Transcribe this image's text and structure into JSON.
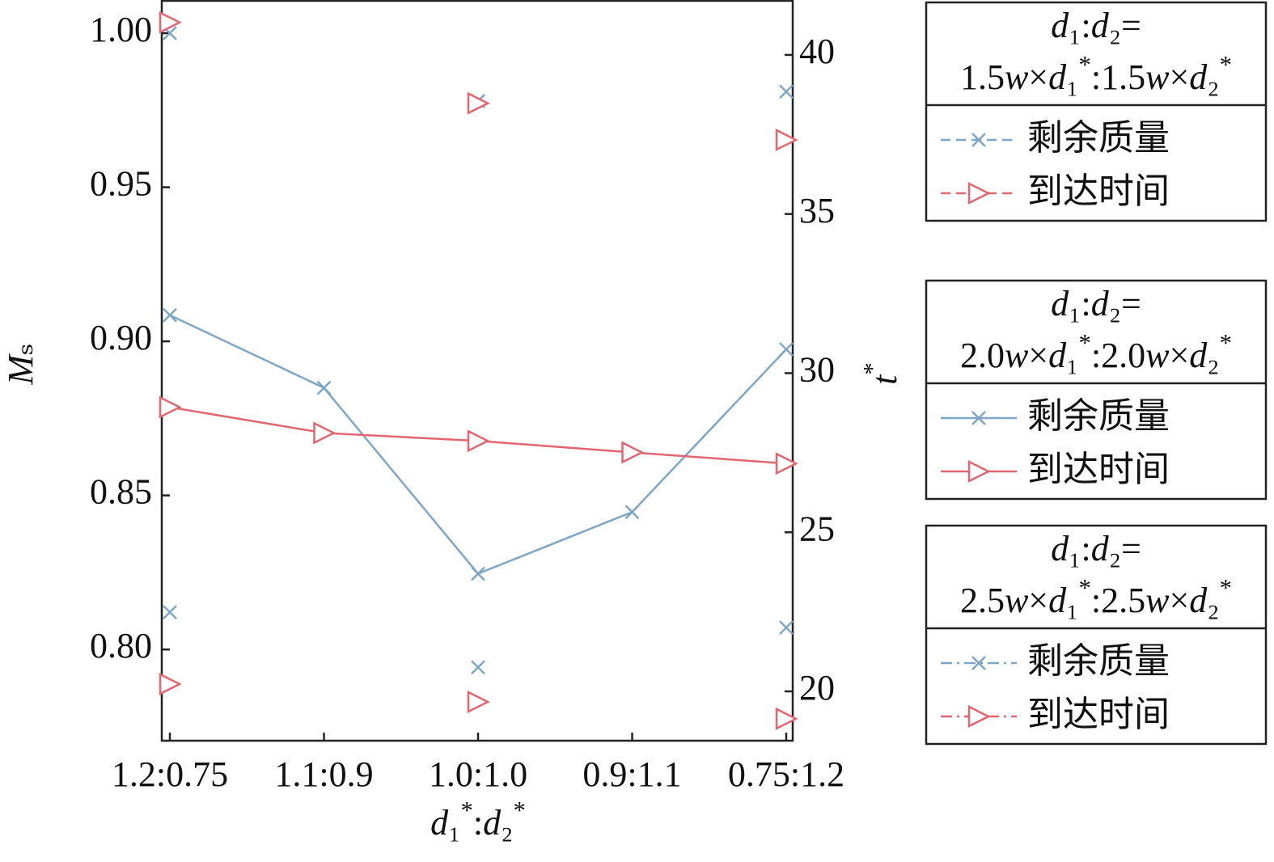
{
  "chart_data": {
    "type": "line",
    "categories": [
      "1.2:0.75",
      "1.1:0.9",
      "1.0:1.0",
      "0.9:1.1",
      "0.75:1.2"
    ],
    "xlabel": "d₁*:d₂*",
    "ylabel": "Mₛ",
    "y2label": "t*",
    "ylim": [
      0.7704,
      1.0105
    ],
    "yticks": [
      {
        "value": 0.8,
        "label": "0.80"
      },
      0.85,
      {
        "value": 0.9,
        "label": "0.90"
      },
      0.95,
      {
        "value": 1.0,
        "label": "1.00"
      }
    ],
    "y2lim": [
      18.45,
      41.7
    ],
    "y2ticks": [
      20,
      25,
      30,
      35,
      40
    ],
    "grid": false,
    "legend_groups": [
      {
        "title": [
          "d₁:d₂=",
          "1.5w×d₁*:1.5w×d₂*"
        ]
      },
      {
        "title": [
          "d₁:d₂=",
          "2.0w×d₁*:2.0w×d₂*"
        ]
      },
      {
        "title": [
          "d₁:d₂=",
          "2.5w×d₁*:2.5w×d₂*"
        ]
      }
    ],
    "series": [
      {
        "name": "剩余质量",
        "group": 0,
        "color": "#7fa6c6",
        "linestyle": "dashed",
        "marker": "x",
        "axis": "y",
        "values": [
          1.0,
          null,
          0.978,
          null,
          0.981
        ]
      },
      {
        "name": "到达时间",
        "group": 0,
        "color": "#e2656f",
        "linestyle": "dashed",
        "marker": "triangle-right",
        "axis": "y2",
        "values": [
          41.02,
          null,
          38.48,
          null,
          37.33
        ]
      },
      {
        "name": "剩余质量",
        "group": 1,
        "color": "#7fa6c6",
        "linestyle": "solid",
        "marker": "x",
        "axis": "y",
        "values": [
          0.9085,
          0.8849,
          0.8246,
          0.8446,
          0.8974
        ]
      },
      {
        "name": "到达时间",
        "group": 1,
        "color": "#e2656f",
        "linestyle": "solid",
        "marker": "triangle-right",
        "axis": "y2",
        "values": [
          28.93,
          28.12,
          27.87,
          27.51,
          27.16
        ]
      },
      {
        "name": "剩余质量",
        "group": 2,
        "color": "#7fa6c6",
        "linestyle": "dashdot",
        "marker": "x",
        "axis": "y",
        "values": [
          0.8121,
          null,
          0.7942,
          null,
          0.8071
        ]
      },
      {
        "name": "到达时间",
        "group": 2,
        "color": "#e2656f",
        "linestyle": "dashdot",
        "marker": "triangle-right",
        "axis": "y2",
        "values": [
          20.23,
          null,
          19.67,
          null,
          19.14
        ]
      }
    ]
  }
}
